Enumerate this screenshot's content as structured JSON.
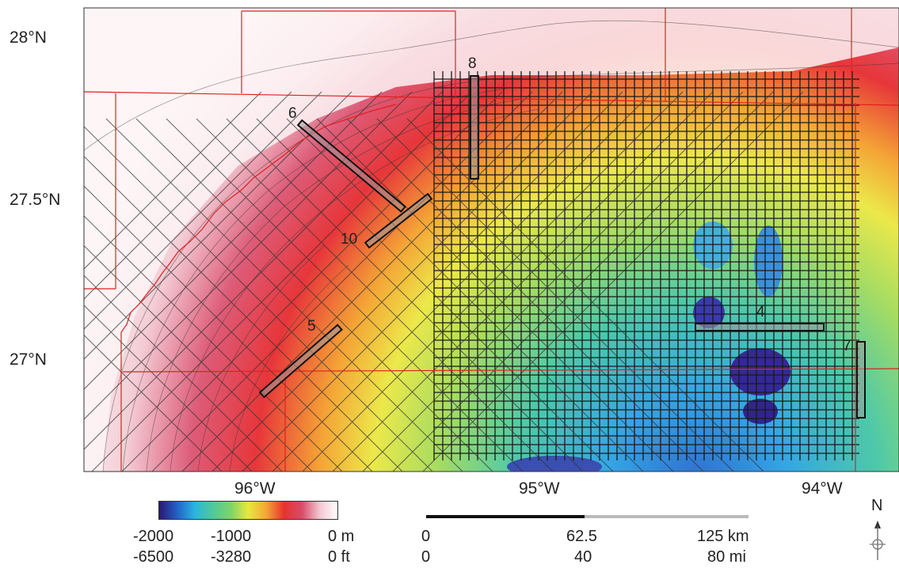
{
  "map": {
    "latitudes": [
      "28°N",
      "27.5°N",
      "27°N"
    ],
    "longitudes": [
      "96°W",
      "95°W",
      "94°W"
    ],
    "segments": [
      "6",
      "8",
      "10",
      "5",
      "4",
      "7"
    ]
  },
  "legend": {
    "colorbar": {
      "colors": [
        "#2a1770",
        "#2360c8",
        "#2ab5e0",
        "#4ec99a",
        "#7dd46a",
        "#e8e83c",
        "#f4a735",
        "#e8322e",
        "#d94a6a",
        "#f3c6cf",
        "#ffffff"
      ],
      "m_labels": [
        "-2000",
        "-1000",
        "0 m"
      ],
      "ft_labels": [
        "-6500",
        "-3280",
        "0 ft"
      ]
    },
    "scale": {
      "km_labels": [
        "0",
        "62.5",
        "125 km"
      ],
      "mi_labels": [
        "0",
        "40",
        "80 mi"
      ]
    },
    "north": "N"
  }
}
